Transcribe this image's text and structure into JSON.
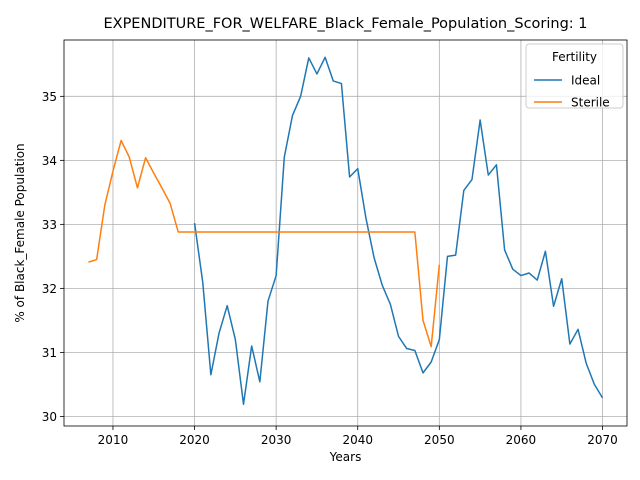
{
  "chart_data": {
    "type": "line",
    "title": "EXPENDITURE_FOR_WELFARE_Black_Female_Population_Scoring: 1",
    "xlabel": "Years",
    "ylabel": "% of Black_Female Population",
    "xlim": [
      2004,
      2073
    ],
    "ylim": [
      29.85,
      35.88
    ],
    "xticks": [
      2010,
      2020,
      2030,
      2040,
      2050,
      2060,
      2070
    ],
    "yticks": [
      30,
      31,
      32,
      33,
      34,
      35
    ],
    "grid": true,
    "legend": {
      "title": "Fertility",
      "placement": "top-right"
    },
    "series": [
      {
        "name": "Ideal",
        "color": "#1f77b4",
        "x": [
          2020,
          2021,
          2022,
          2023,
          2024,
          2025,
          2026,
          2027,
          2028,
          2029,
          2030,
          2031,
          2032,
          2033,
          2034,
          2035,
          2036,
          2037,
          2038,
          2039,
          2040,
          2041,
          2042,
          2043,
          2044,
          2045,
          2046,
          2047,
          2048,
          2049,
          2050,
          2051,
          2052,
          2053,
          2054,
          2055,
          2056,
          2057,
          2058,
          2059,
          2060,
          2061,
          2062,
          2063,
          2064,
          2065,
          2066,
          2067,
          2068,
          2069,
          2070
        ],
        "y": [
          33.02,
          32.1,
          30.65,
          31.3,
          31.73,
          31.2,
          30.19,
          31.1,
          30.54,
          31.8,
          32.2,
          34.05,
          34.7,
          35.0,
          35.6,
          35.35,
          35.61,
          35.24,
          35.2,
          33.74,
          33.87,
          33.1,
          32.48,
          32.05,
          31.75,
          31.25,
          31.06,
          31.03,
          30.68,
          30.85,
          31.2,
          32.5,
          32.52,
          33.53,
          33.7,
          34.63,
          33.77,
          33.93,
          32.6,
          32.3,
          32.2,
          32.24,
          32.13,
          32.58,
          31.72,
          32.15,
          31.13,
          31.36,
          30.83,
          30.5,
          30.29
        ]
      },
      {
        "name": "Sterile",
        "color": "#ff7f0e",
        "x": [
          2007,
          2008,
          2009,
          2010,
          2011,
          2012,
          2013,
          2014,
          2015,
          2016,
          2017,
          2018,
          2019,
          2020,
          2021,
          2022,
          2023,
          2024,
          2025,
          2026,
          2027,
          2028,
          2029,
          2030,
          2031,
          2032,
          2033,
          2034,
          2035,
          2036,
          2037,
          2038,
          2039,
          2040,
          2041,
          2042,
          2043,
          2044,
          2045,
          2046,
          2047,
          2048,
          2049,
          2050
        ],
        "y": [
          32.41,
          32.45,
          33.3,
          33.83,
          34.31,
          34.05,
          33.57,
          34.04,
          33.8,
          33.57,
          33.33,
          32.88,
          32.88,
          32.88,
          32.88,
          32.88,
          32.88,
          32.88,
          32.88,
          32.88,
          32.88,
          32.88,
          32.88,
          32.88,
          32.88,
          32.88,
          32.88,
          32.88,
          32.88,
          32.88,
          32.88,
          32.88,
          32.88,
          32.88,
          32.88,
          32.88,
          32.88,
          32.88,
          32.88,
          32.88,
          32.88,
          31.5,
          31.09,
          32.37
        ]
      }
    ]
  }
}
